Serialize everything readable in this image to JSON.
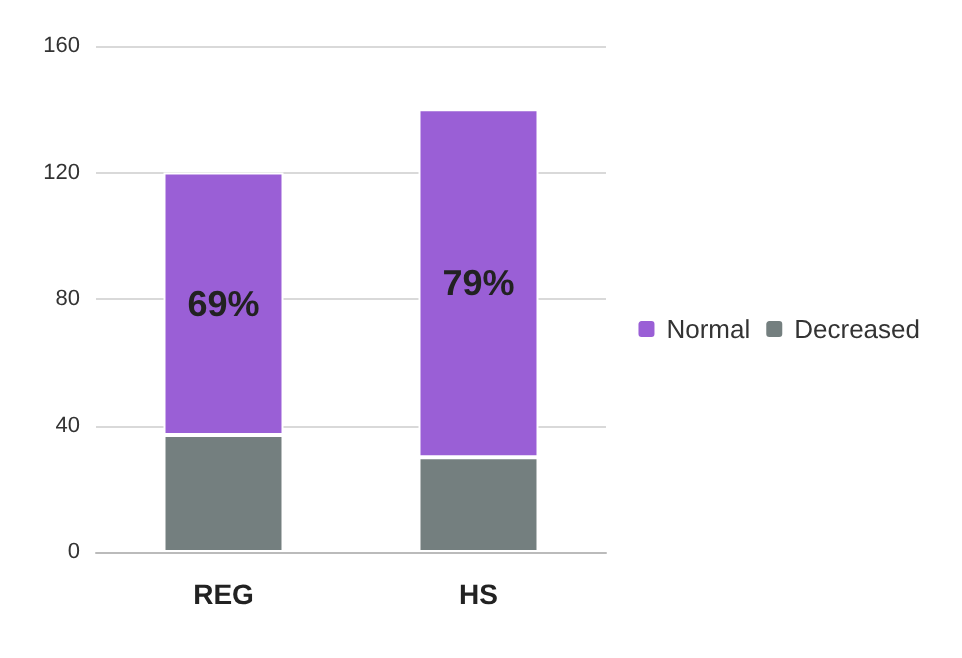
{
  "chart_data": {
    "type": "bar",
    "stacked": true,
    "categories": [
      "REG",
      "HS"
    ],
    "series": [
      {
        "name": "Decreased",
        "color": "#747f7f",
        "values": [
          37,
          30
        ]
      },
      {
        "name": "Normal",
        "color": "#9a5fd6",
        "values": [
          83,
          110
        ]
      }
    ],
    "annotations": [
      "69%",
      "79%"
    ],
    "ylim": [
      0,
      160
    ],
    "yticks": [
      0,
      40,
      80,
      120,
      160
    ],
    "grid": "y",
    "legend": "right"
  }
}
